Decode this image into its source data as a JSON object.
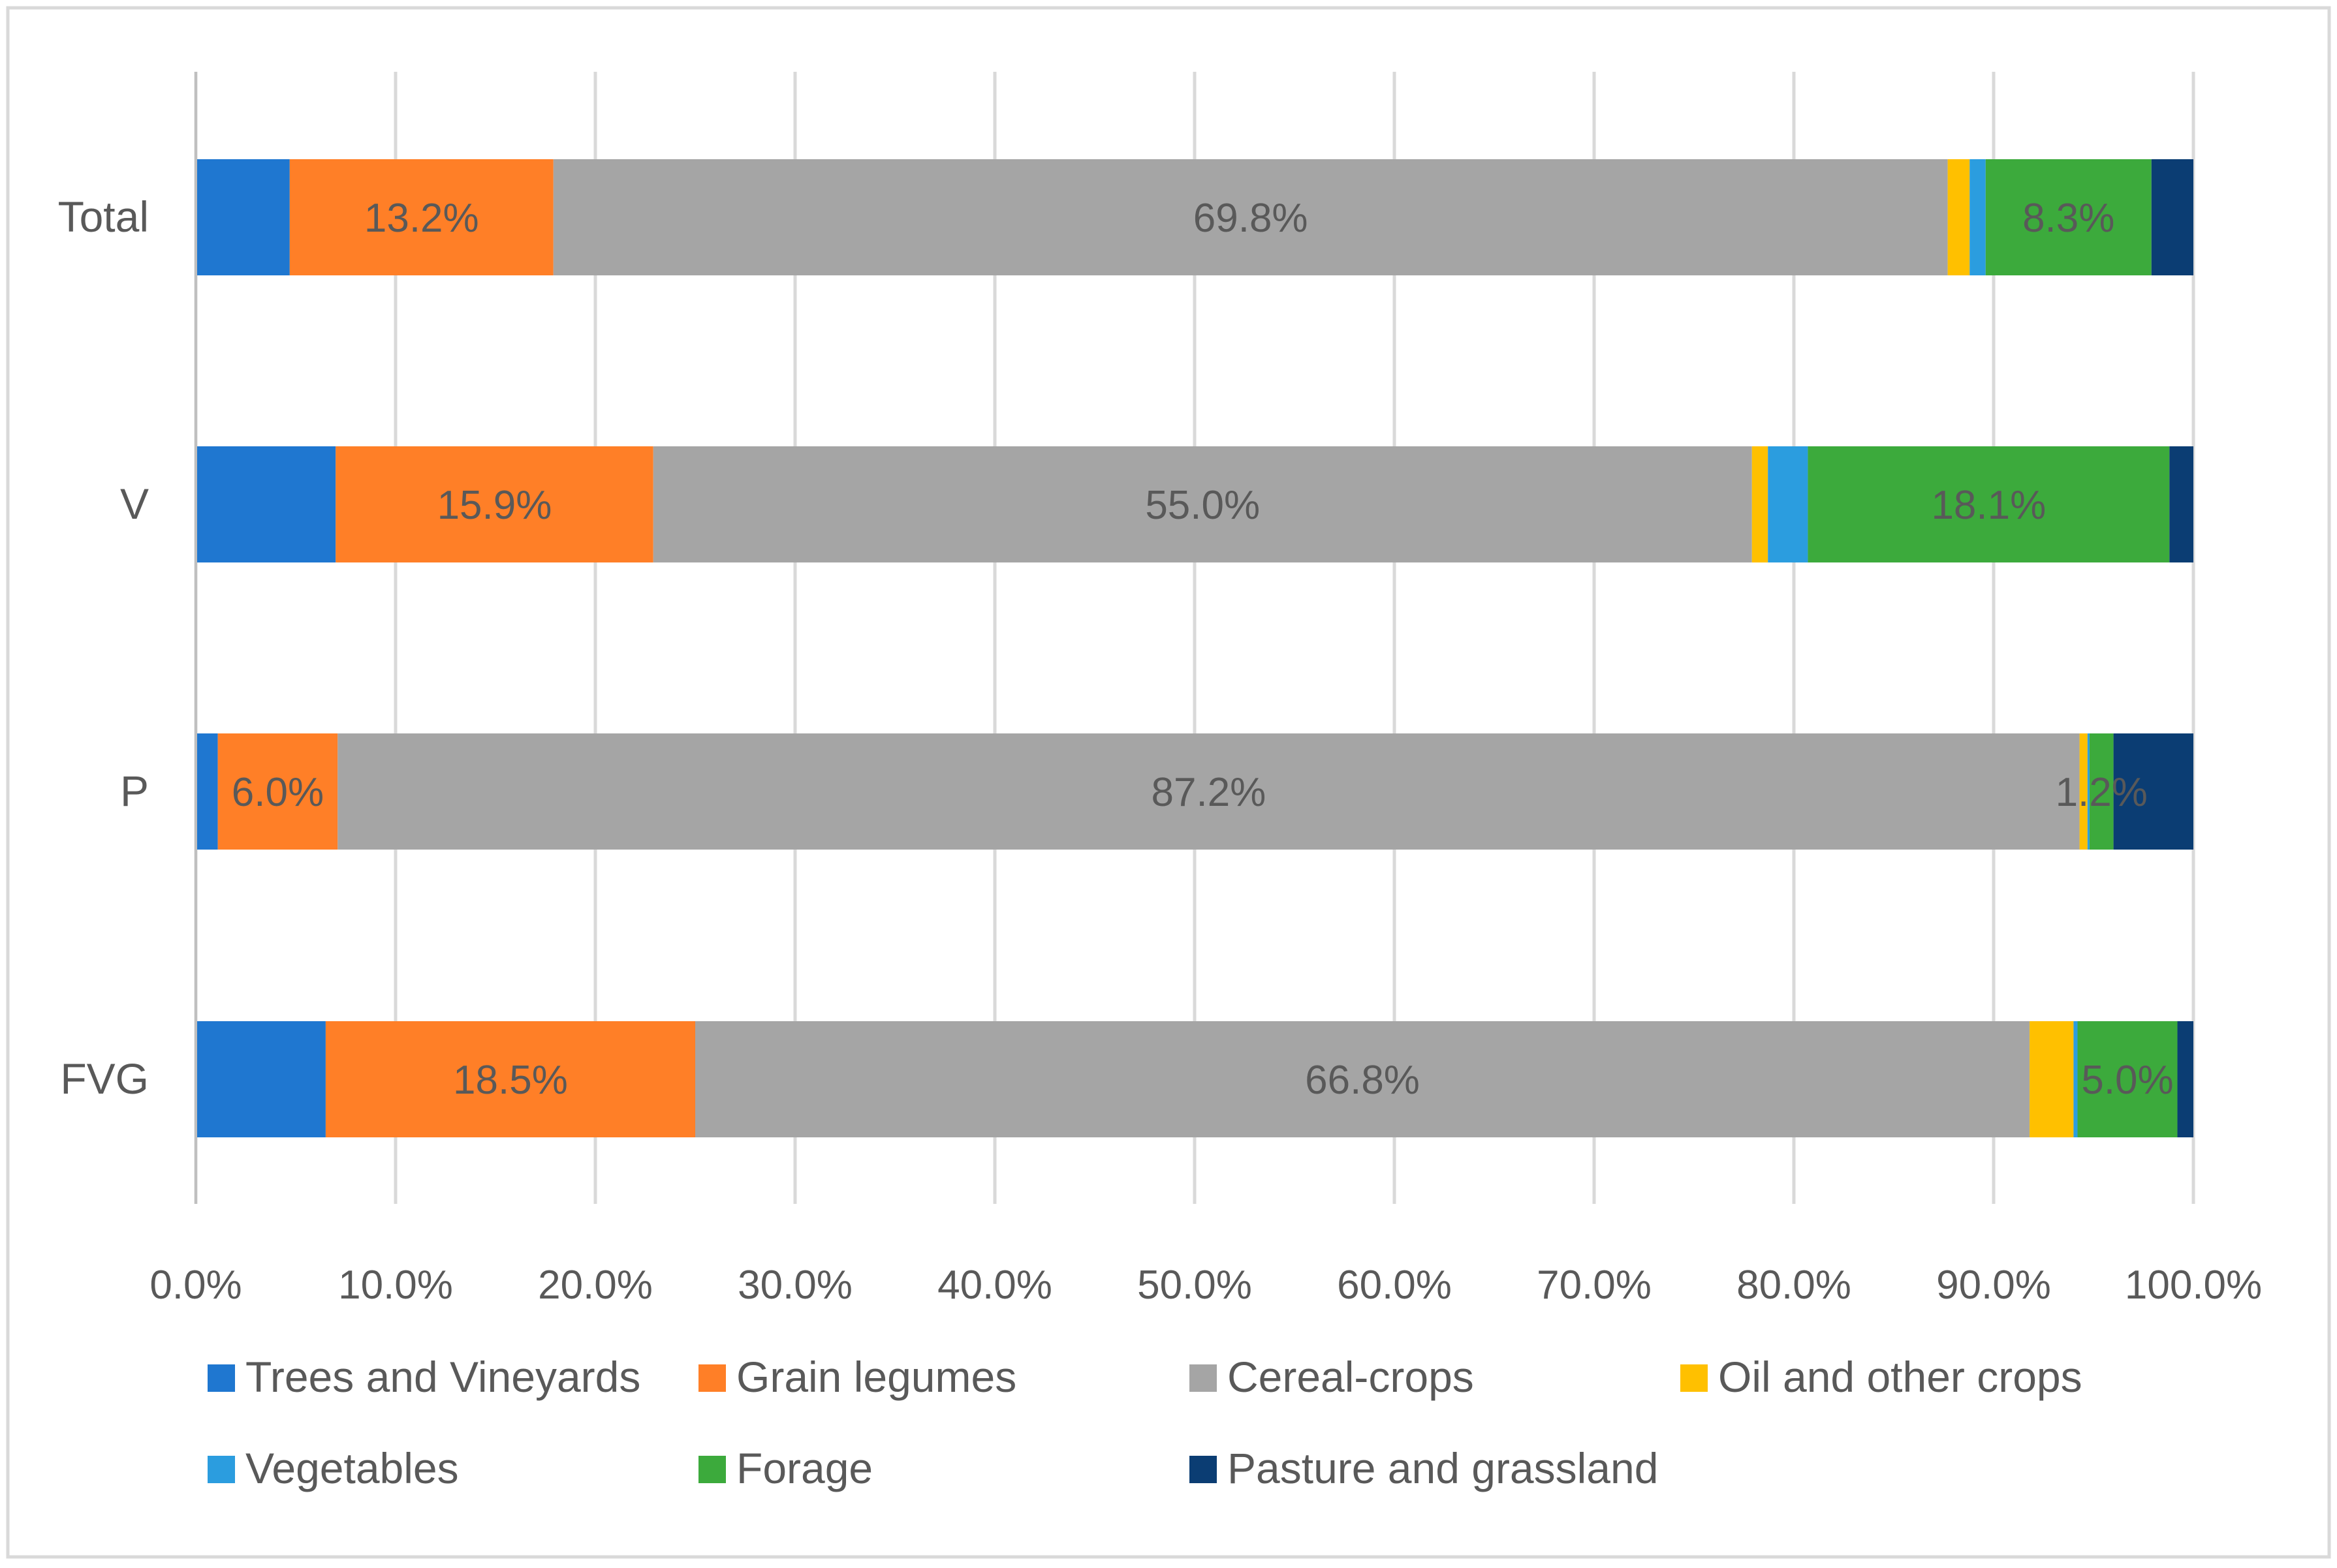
{
  "chart_data": {
    "type": "bar",
    "orientation": "horizontal",
    "stacked": "percent",
    "title": "",
    "xlabel": "",
    "ylabel": "",
    "xlim": [
      0,
      100
    ],
    "x_ticks": [
      0,
      10,
      20,
      30,
      40,
      50,
      60,
      70,
      80,
      90,
      100
    ],
    "x_tick_labels": [
      "0.0%",
      "10.0%",
      "20.0%",
      "30.0%",
      "40.0%",
      "50.0%",
      "60.0%",
      "70.0%",
      "80.0%",
      "90.0%",
      "100.0%"
    ],
    "grid": "vertical",
    "legend_position": "bottom",
    "categories": [
      "Total",
      "V",
      "P",
      "FVG"
    ],
    "series": [
      {
        "name": "Trees and Vineyards",
        "color": "#1F77D0",
        "values": [
          4.7,
          7.0,
          1.1,
          6.5
        ]
      },
      {
        "name": "Grain legumes",
        "color": "#FF7F27",
        "values": [
          13.2,
          15.9,
          6.0,
          18.5
        ]
      },
      {
        "name": "Cereal-crops",
        "color": "#A5A5A5",
        "values": [
          69.8,
          55.0,
          87.2,
          66.8
        ]
      },
      {
        "name": "Oil and other crops",
        "color": "#FFC000",
        "values": [
          1.1,
          0.8,
          0.4,
          2.2
        ]
      },
      {
        "name": "Vegetables",
        "color": "#2B9DDF",
        "values": [
          0.8,
          2.0,
          0.1,
          0.2
        ]
      },
      {
        "name": "Forage",
        "color": "#3CAA3C",
        "values": [
          8.3,
          18.1,
          1.2,
          5.0
        ]
      },
      {
        "name": "Pasture and grassland",
        "color": "#0B3D73",
        "values": [
          2.1,
          1.2,
          4.0,
          0.8
        ]
      }
    ],
    "data_labels": [
      {
        "category": "Total",
        "series": "Grain legumes",
        "text": "13.2%"
      },
      {
        "category": "Total",
        "series": "Cereal-crops",
        "text": "69.8%"
      },
      {
        "category": "Total",
        "series": "Forage",
        "text": "8.3%"
      },
      {
        "category": "V",
        "series": "Grain legumes",
        "text": "15.9%"
      },
      {
        "category": "V",
        "series": "Cereal-crops",
        "text": "55.0%"
      },
      {
        "category": "V",
        "series": "Forage",
        "text": "18.1%"
      },
      {
        "category": "P",
        "series": "Grain legumes",
        "text": "6.0%"
      },
      {
        "category": "P",
        "series": "Cereal-crops",
        "text": "87.2%"
      },
      {
        "category": "P",
        "series": "Forage",
        "text": "1.2%"
      },
      {
        "category": "FVG",
        "series": "Grain legumes",
        "text": "18.5%"
      },
      {
        "category": "FVG",
        "series": "Cereal-crops",
        "text": "66.8%"
      },
      {
        "category": "FVG",
        "series": "Forage",
        "text": "5.0%"
      }
    ],
    "colors": {
      "gridline": "#D9D9D9",
      "axis": "#BFBFBF",
      "text": "#595959",
      "border": "#D9D9D9"
    }
  }
}
